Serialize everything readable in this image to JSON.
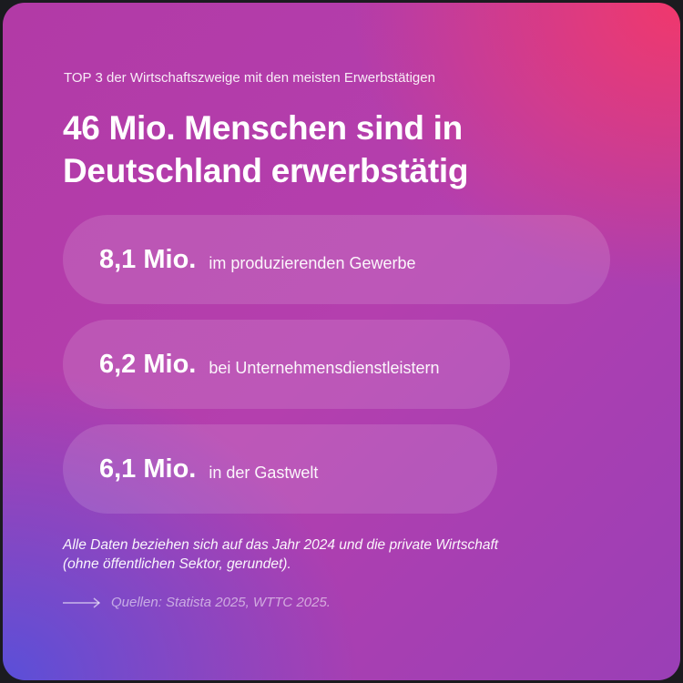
{
  "subtitle": "TOP 3 der Wirtschaftszweige mit den meisten Erwerbstätigen",
  "headline": {
    "line1": "46 Mio. Menschen sind in",
    "line2": "Deutschland erwerbstätig"
  },
  "items": [
    {
      "value": "8,1 Mio.",
      "label": "im produzierenden Gewerbe"
    },
    {
      "value": "6,2 Mio.",
      "label": "bei Unternehmensdienstleistern"
    },
    {
      "value": "6,1 Mio.",
      "label": "in der Gastwelt"
    }
  ],
  "note": {
    "line1": "Alle Daten beziehen sich auf das Jahr 2024 und die private Wirtschaft",
    "line2": "(ohne öffentlichen Sektor, gerundet)."
  },
  "sources": {
    "icon": "arrow-right-icon",
    "text": "Quellen: Statista 2025, WTTC 2025."
  },
  "colors": {
    "gradient_top_right": "#f0386c",
    "gradient_center": "#b23aa6",
    "gradient_bottom_left": "#5a4fd8",
    "text": "#ffffff"
  }
}
